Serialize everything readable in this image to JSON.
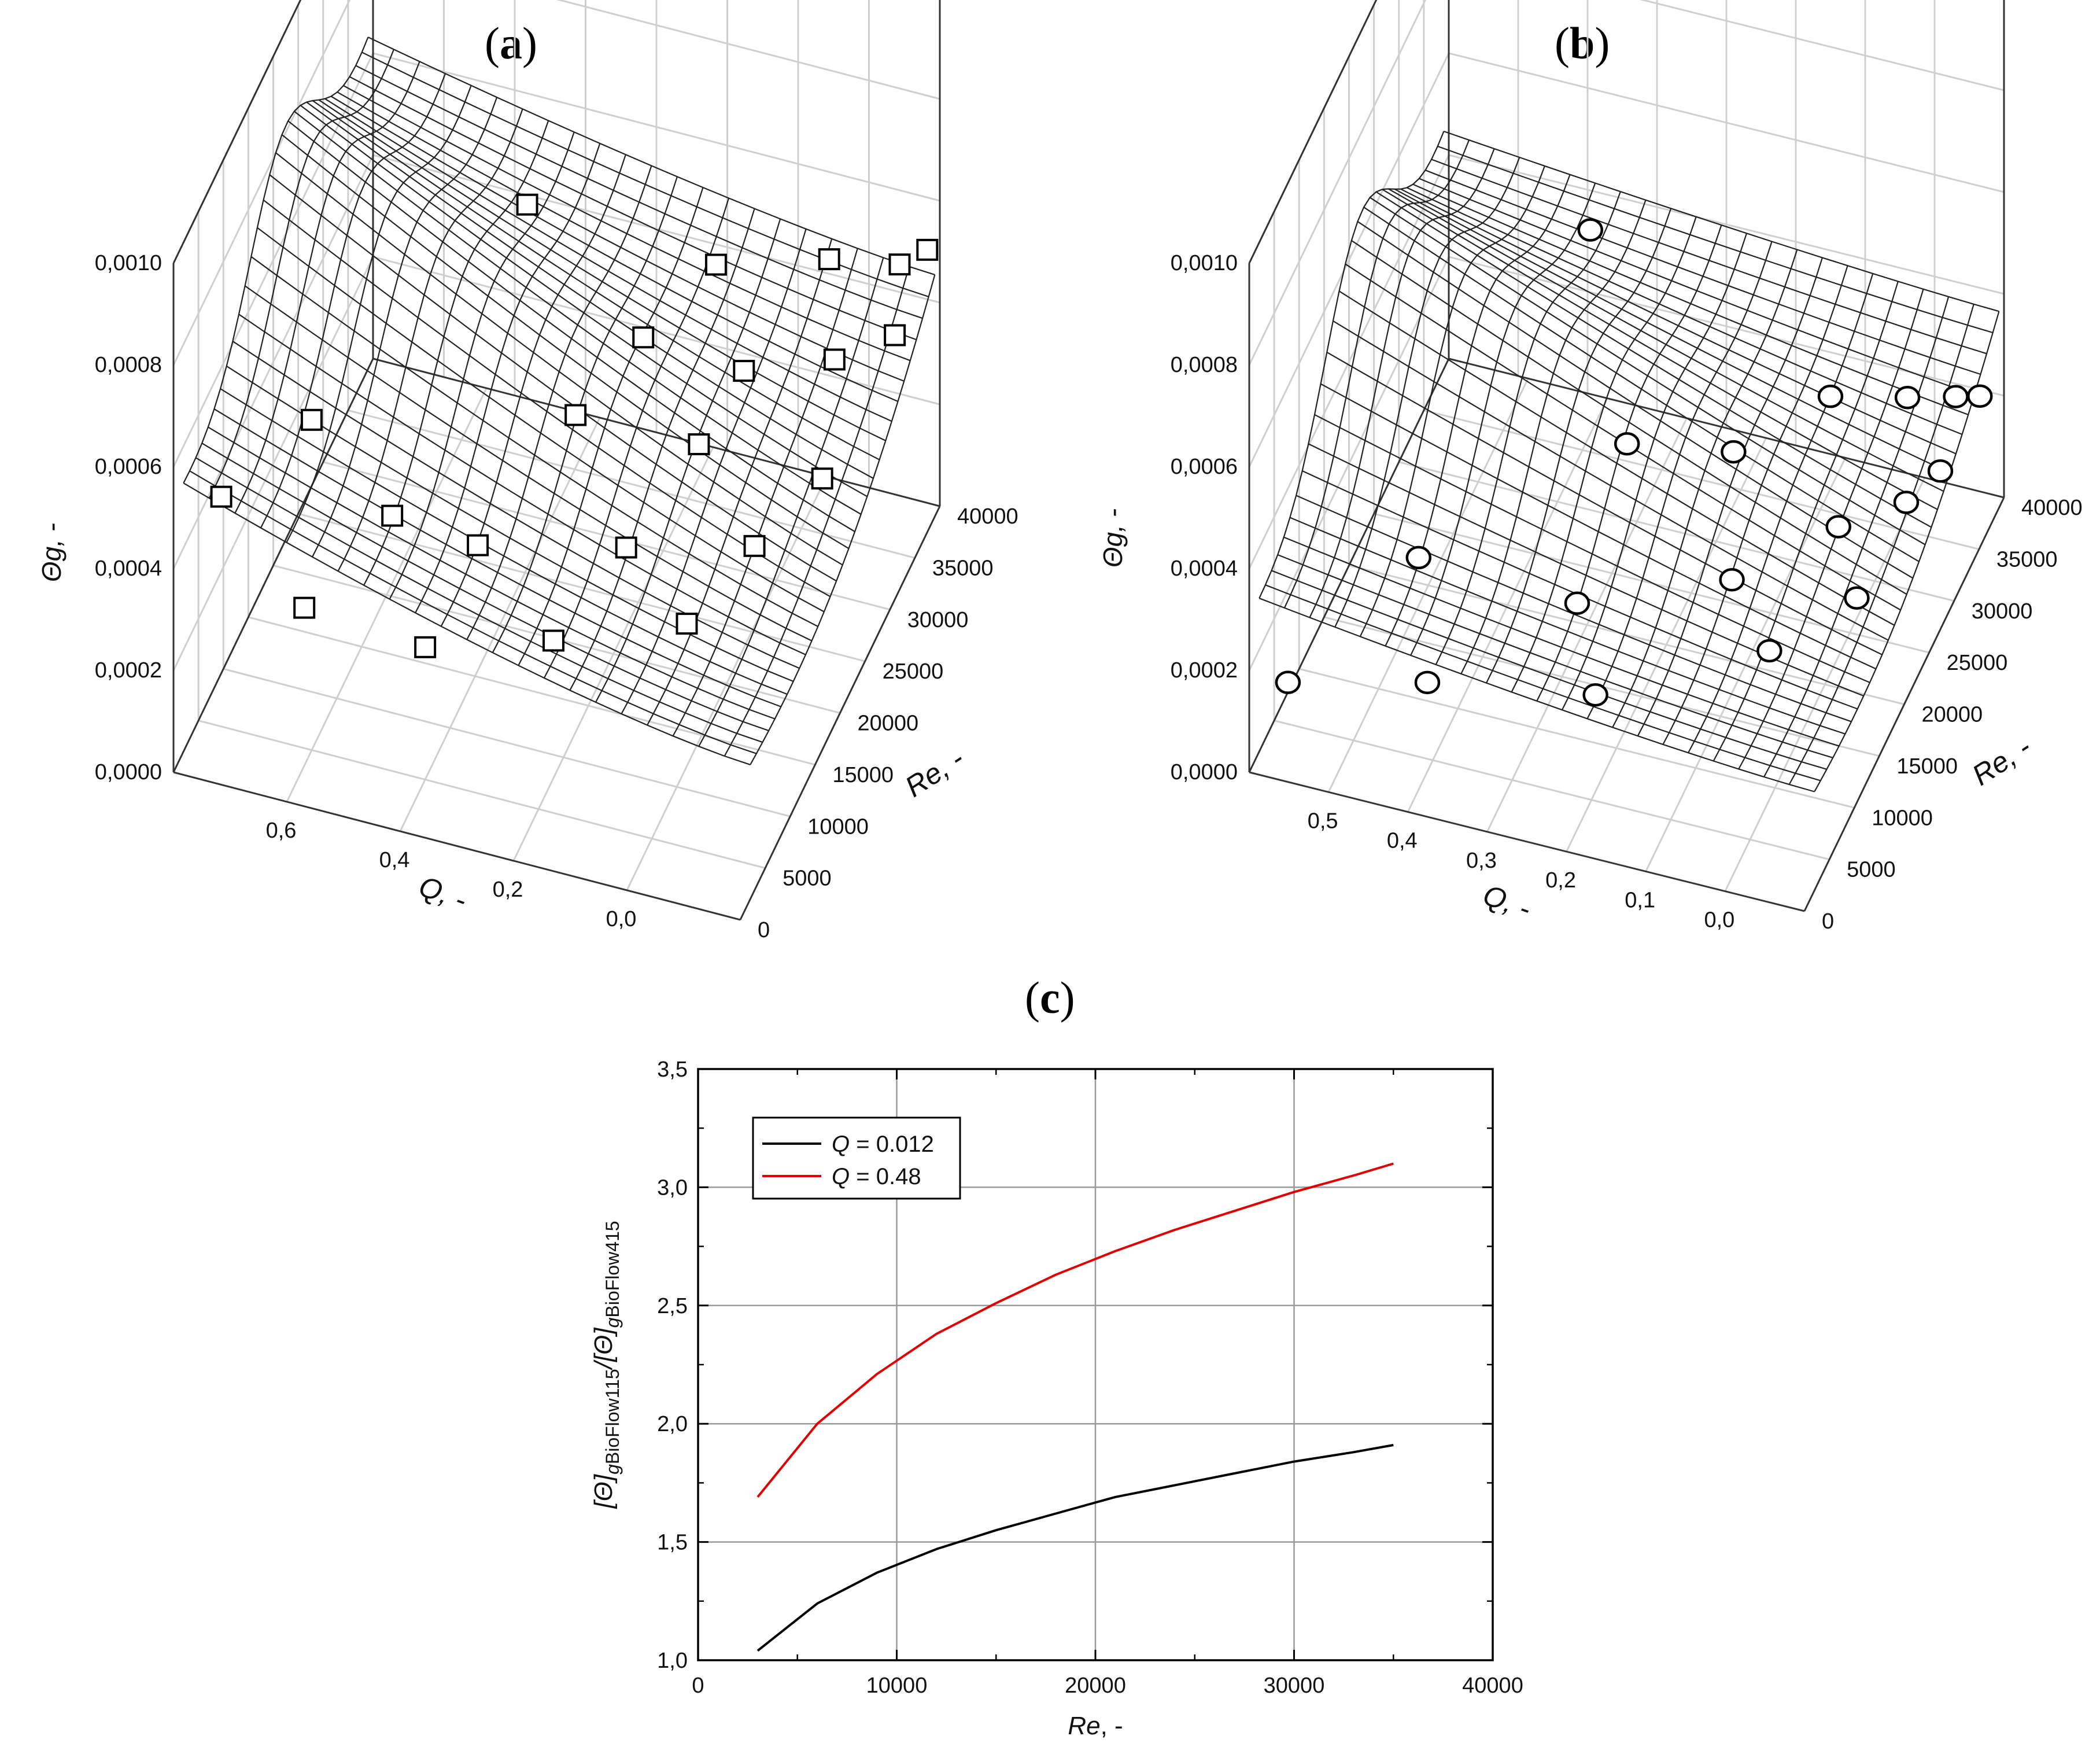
{
  "panels": {
    "a": {
      "open": "(",
      "letter": "a",
      "close": ")"
    },
    "b": {
      "open": "(",
      "letter": "b",
      "close": ")"
    },
    "c": {
      "open": "(",
      "letter": "c",
      "close": ")"
    }
  },
  "chart_data": [
    {
      "id": "a",
      "type": "surface3d",
      "title": "(a)",
      "zlabel": "Θg, -",
      "xlabel": "Q, -",
      "ylabel": "Re, -",
      "zlim": [
        0.0,
        0.001
      ],
      "z_ticks": [
        "0,0000",
        "0,0002",
        "0,0004",
        "0,0006",
        "0,0008",
        "0,0010"
      ],
      "q_ticks": [
        "0,6",
        "0,4",
        "0,2",
        "0,0"
      ],
      "re_ticks": [
        "0",
        "5000",
        "10000",
        "15000",
        "20000",
        "25000",
        "30000",
        "35000",
        "40000"
      ],
      "marker": "square",
      "points": [
        {
          "q": 0.7,
          "re": 2000,
          "theta": 0.00052
        },
        {
          "q": 0.62,
          "re": 8000,
          "theta": 0.00058
        },
        {
          "q": 0.6,
          "re": 3500,
          "theta": 0.00031
        },
        {
          "q": 0.52,
          "re": 9000,
          "theta": 0.00041
        },
        {
          "q": 0.48,
          "re": 30000,
          "theta": 0.00061
        },
        {
          "q": 0.45,
          "re": 5000,
          "theta": 0.00026
        },
        {
          "q": 0.42,
          "re": 11000,
          "theta": 0.00035
        },
        {
          "q": 0.35,
          "re": 20000,
          "theta": 0.00045
        },
        {
          "q": 0.3,
          "re": 26000,
          "theta": 0.0005
        },
        {
          "q": 0.3,
          "re": 8000,
          "theta": 0.00027
        },
        {
          "q": 0.25,
          "re": 33000,
          "theta": 0.00052
        },
        {
          "q": 0.25,
          "re": 15000,
          "theta": 0.00033
        },
        {
          "q": 0.2,
          "re": 22000,
          "theta": 0.00041
        },
        {
          "q": 0.18,
          "re": 28000,
          "theta": 0.00044
        },
        {
          "q": 0.15,
          "re": 12000,
          "theta": 0.00028
        },
        {
          "q": 0.12,
          "re": 36000,
          "theta": 0.00052
        },
        {
          "q": 0.1,
          "re": 18000,
          "theta": 0.00033
        },
        {
          "q": 0.08,
          "re": 31000,
          "theta": 0.00044
        },
        {
          "q": 0.05,
          "re": 24000,
          "theta": 0.00036
        },
        {
          "q": 0.04,
          "re": 38000,
          "theta": 0.0005
        },
        {
          "q": 0.02,
          "re": 34000,
          "theta": 0.00045
        },
        {
          "q": 0.01,
          "re": 39000,
          "theta": 0.00052
        }
      ]
    },
    {
      "id": "b",
      "type": "surface3d",
      "title": "(b)",
      "zlabel": "Θg, -",
      "xlabel": "Q, -",
      "ylabel": "Re, -",
      "zlim": [
        0.0,
        0.001
      ],
      "z_ticks": [
        "0,0000",
        "0,0002",
        "0,0004",
        "0,0006",
        "0,0008",
        "0,0010"
      ],
      "q_ticks": [
        "0,5",
        "0,4",
        "0,3",
        "0,2",
        "0,1",
        "0,0"
      ],
      "re_ticks": [
        "0",
        "5000",
        "10000",
        "15000",
        "20000",
        "25000",
        "30000",
        "35000",
        "40000"
      ],
      "marker": "circle",
      "points": [
        {
          "q": 0.55,
          "re": 2000,
          "theta": 0.00015
        },
        {
          "q": 0.45,
          "re": 9000,
          "theta": 0.0003
        },
        {
          "q": 0.42,
          "re": 5000,
          "theta": 0.00015
        },
        {
          "q": 0.38,
          "re": 30000,
          "theta": 0.00055
        },
        {
          "q": 0.3,
          "re": 22000,
          "theta": 0.00033
        },
        {
          "q": 0.3,
          "re": 12000,
          "theta": 0.00022
        },
        {
          "q": 0.26,
          "re": 8000,
          "theta": 0.00014
        },
        {
          "q": 0.22,
          "re": 28000,
          "theta": 0.00023
        },
        {
          "q": 0.18,
          "re": 20000,
          "theta": 0.00016
        },
        {
          "q": 0.15,
          "re": 34000,
          "theta": 0.00025
        },
        {
          "q": 0.12,
          "re": 16000,
          "theta": 0.00013
        },
        {
          "q": 0.1,
          "re": 26000,
          "theta": 0.00018
        },
        {
          "q": 0.08,
          "re": 36000,
          "theta": 0.00024
        },
        {
          "q": 0.06,
          "re": 22000,
          "theta": 0.00014
        },
        {
          "q": 0.05,
          "re": 30000,
          "theta": 0.00017
        },
        {
          "q": 0.04,
          "re": 38000,
          "theta": 0.00022
        },
        {
          "q": 0.03,
          "re": 33000,
          "theta": 0.00018
        },
        {
          "q": 0.02,
          "re": 39000,
          "theta": 0.00021
        }
      ]
    },
    {
      "id": "c",
      "type": "line",
      "title": "(c)",
      "xlabel": "Re, -",
      "ylabel": "[Θ]gBioFlow115/[Θ]gBioFlow415",
      "xlim": [
        0,
        40000
      ],
      "ylim": [
        1.0,
        3.5
      ],
      "x_ticks": [
        "0",
        "10000",
        "20000",
        "30000",
        "40000"
      ],
      "y_ticks": [
        "1,0",
        "1,5",
        "2,0",
        "2,5",
        "3,0",
        "3,5"
      ],
      "grid": true,
      "legend_position": "top-left",
      "series": [
        {
          "name": "Q = 0.012",
          "color": "#000000",
          "x": [
            3000,
            6000,
            9000,
            12000,
            15000,
            18000,
            21000,
            24000,
            27000,
            30000,
            33000,
            35000
          ],
          "y": [
            1.04,
            1.24,
            1.37,
            1.47,
            1.55,
            1.62,
            1.69,
            1.74,
            1.79,
            1.84,
            1.88,
            1.91
          ]
        },
        {
          "name": "Q = 0.48",
          "color": "#e00000",
          "x": [
            3000,
            6000,
            9000,
            12000,
            15000,
            18000,
            21000,
            24000,
            27000,
            30000,
            33000,
            35000
          ],
          "y": [
            1.69,
            2.0,
            2.21,
            2.38,
            2.51,
            2.63,
            2.73,
            2.82,
            2.9,
            2.98,
            3.05,
            3.1
          ]
        }
      ]
    }
  ]
}
